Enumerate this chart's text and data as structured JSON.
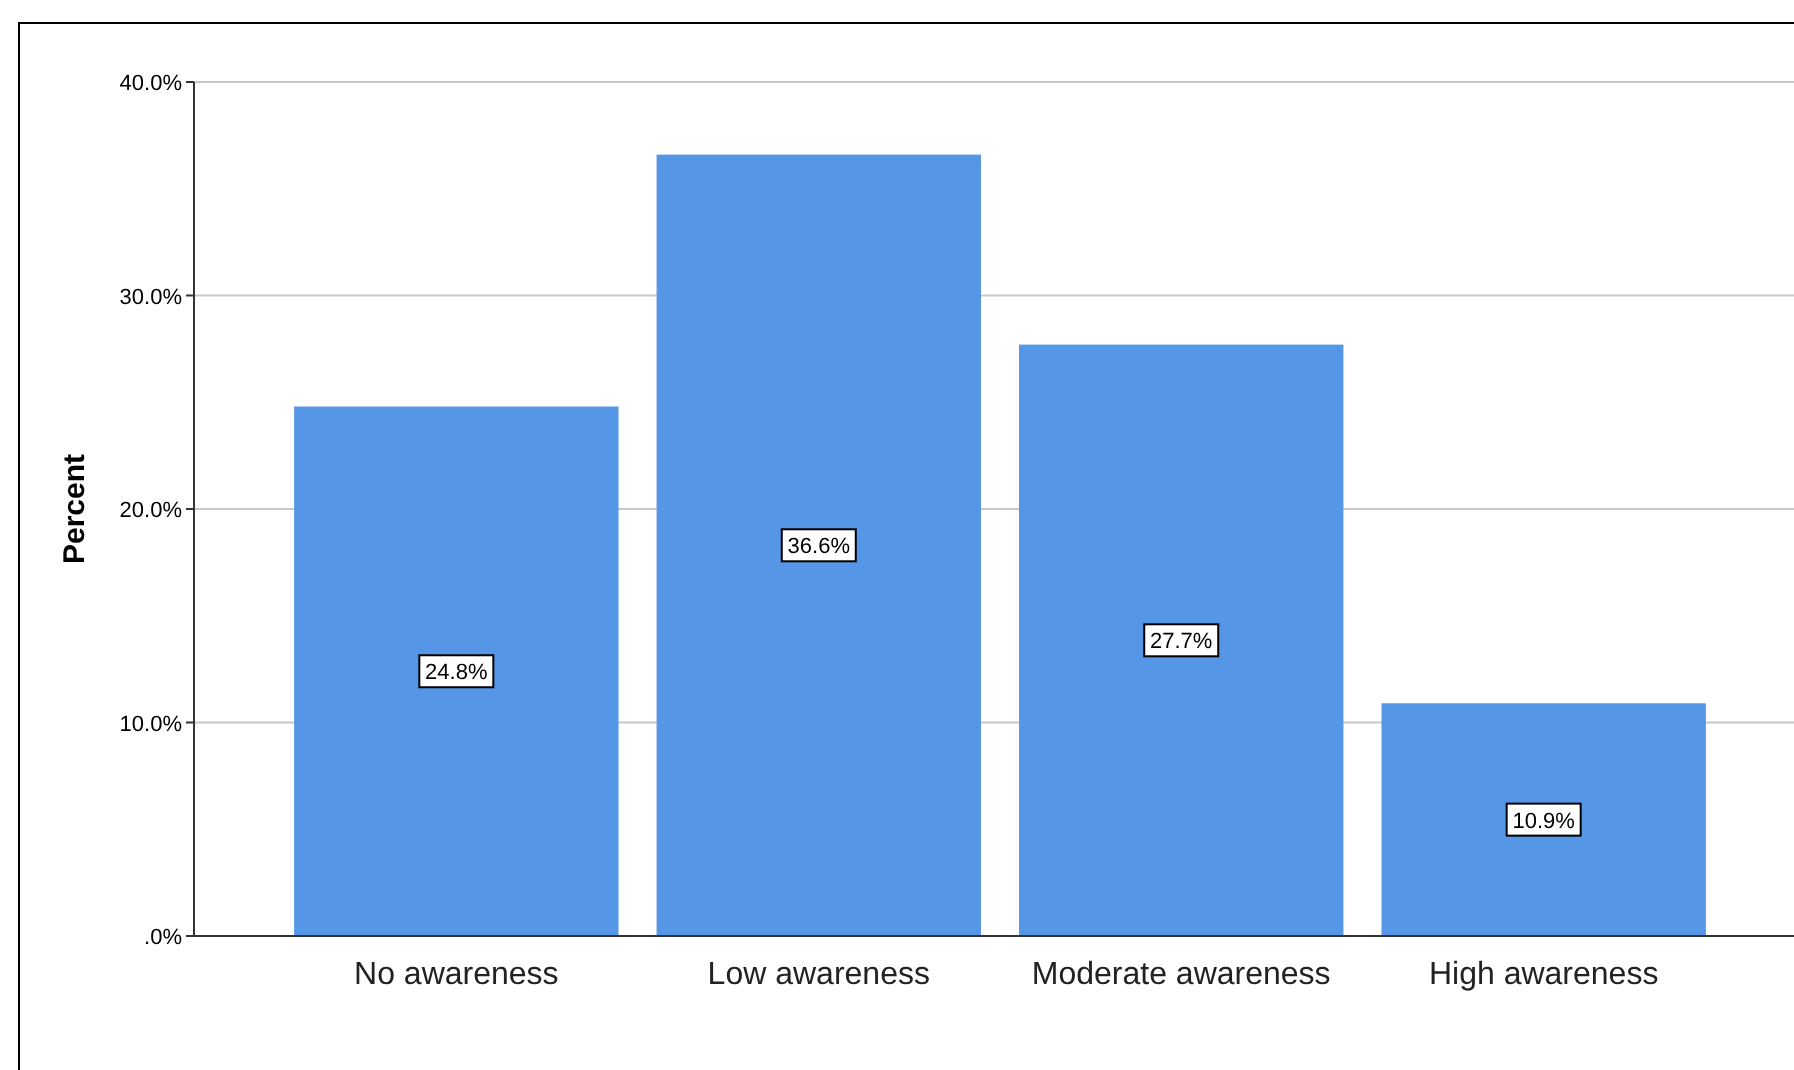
{
  "chart_data": {
    "type": "bar",
    "ylabel": "Percent",
    "categories": [
      "No awareness",
      "Low awareness",
      "Moderate awareness",
      "High awareness"
    ],
    "values": [
      24.8,
      36.6,
      27.7,
      10.9
    ],
    "color": "#5596e6",
    "value_labels": [
      "24.8%",
      "36.6%",
      "27.7%",
      "10.9%"
    ],
    "ylim": [
      0,
      40
    ],
    "yticks": [
      {
        "value": 0,
        "label": ".0%"
      },
      {
        "value": 10,
        "label": "10.0%"
      },
      {
        "value": 20,
        "label": "20.0%"
      },
      {
        "value": 30,
        "label": "30.0%"
      },
      {
        "value": 40,
        "label": "40.0%"
      }
    ],
    "grid": "y"
  }
}
